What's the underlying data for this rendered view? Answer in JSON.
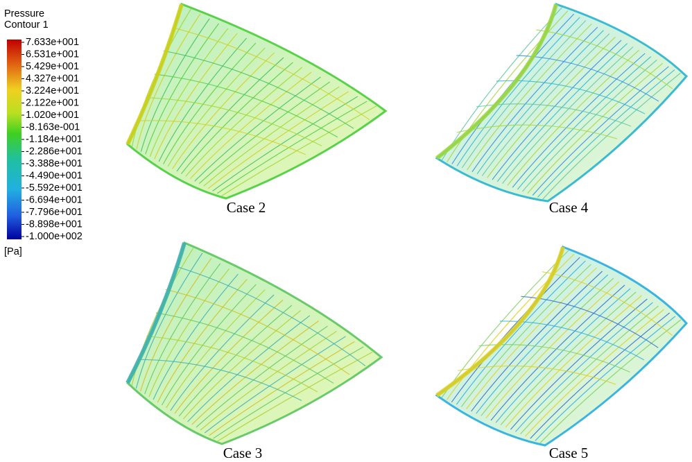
{
  "legend": {
    "title": "Pressure",
    "subtitle": "Contour 1",
    "labels": [
      "7.633e+001",
      "6.531e+001",
      "5.429e+001",
      "4.327e+001",
      "3.224e+001",
      "2.122e+001",
      "1.020e+001",
      "-8.163e-001",
      "-1.184e+001",
      "-2.286e+001",
      "-3.388e+001",
      "-4.490e+001",
      "-5.592e+001",
      "-6.694e+001",
      "-7.796e+001",
      "-8.898e+001",
      "-1.000e+002"
    ],
    "unit": "[Pa]"
  },
  "panels": [
    {
      "label": "Case 2"
    },
    {
      "label": "Case 4"
    },
    {
      "label": "Case 3"
    },
    {
      "label": "Case 5"
    }
  ]
}
